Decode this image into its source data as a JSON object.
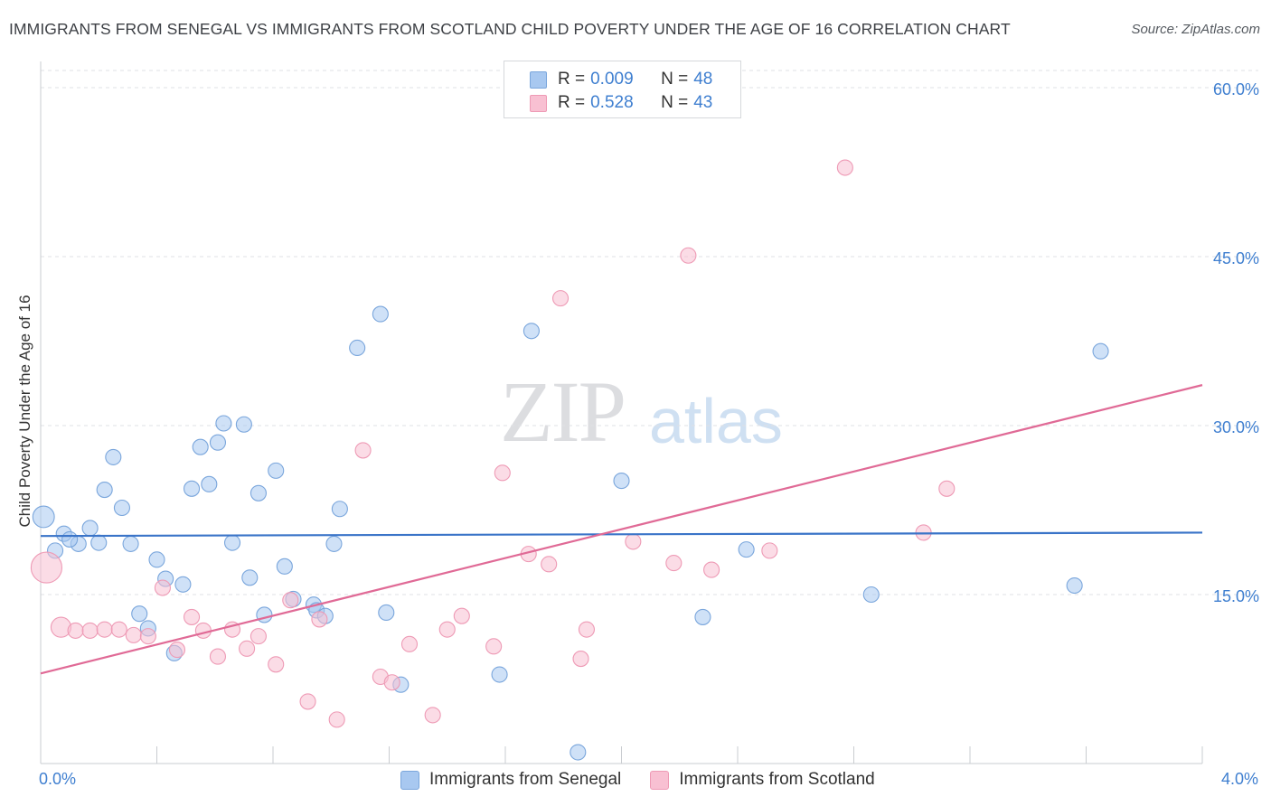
{
  "title": "IMMIGRANTS FROM SENEGAL VS IMMIGRANTS FROM SCOTLAND CHILD POVERTY UNDER THE AGE OF 16 CORRELATION CHART",
  "source": "Source: ZipAtlas.com",
  "watermark": {
    "zip": "ZIP",
    "atlas": "atlas"
  },
  "legend": {
    "rows": [
      {
        "r_label": "R =",
        "r_value": "0.009",
        "n_label": "N =",
        "n_value": "48",
        "color": "#a8c8f0",
        "border": "#7aa6dc"
      },
      {
        "r_label": "R =",
        "r_value": "0.528",
        "n_label": "N =",
        "n_value": "43",
        "color": "#f8c0d2",
        "border": "#ee9ab5"
      }
    ]
  },
  "bottom_legend": [
    {
      "label": "Immigrants from Senegal",
      "color": "#a8c8f0",
      "border": "#7aa6dc"
    },
    {
      "label": "Immigrants from Scotland",
      "color": "#f8c0d2",
      "border": "#ee9ab5"
    }
  ],
  "chart_data": {
    "type": "scatter",
    "title": "IMMIGRANTS FROM SENEGAL VS IMMIGRANTS FROM SCOTLAND CHILD POVERTY UNDER THE AGE OF 16 CORRELATION CHART",
    "xlabel": "",
    "ylabel": "Child Poverty Under the Age of 16",
    "xlim": [
      0,
      4.0
    ],
    "ylim": [
      0,
      60
    ],
    "x_tick_labels": [
      "0.0%",
      "4.0%"
    ],
    "y_ticks": [
      15,
      30,
      45,
      60
    ],
    "y_tick_labels": [
      "15.0%",
      "30.0%",
      "45.0%",
      "60.0%"
    ],
    "grid": true,
    "legend_position": "top-center",
    "series": [
      {
        "name": "Immigrants from Senegal",
        "color": "#a8c8f0",
        "stroke": "#7aa6dc",
        "trend": {
          "x": [
            0.0,
            4.0
          ],
          "y": [
            20.2,
            20.5
          ],
          "color": "#3a74c8"
        },
        "points": [
          {
            "x": 0.01,
            "y": 21.9,
            "s": 1.4
          },
          {
            "x": 0.05,
            "y": 18.9
          },
          {
            "x": 0.08,
            "y": 20.4
          },
          {
            "x": 0.13,
            "y": 19.5
          },
          {
            "x": 0.1,
            "y": 19.9
          },
          {
            "x": 0.17,
            "y": 20.9
          },
          {
            "x": 0.2,
            "y": 19.6
          },
          {
            "x": 0.22,
            "y": 24.3
          },
          {
            "x": 0.25,
            "y": 27.2
          },
          {
            "x": 0.28,
            "y": 22.7
          },
          {
            "x": 0.31,
            "y": 19.5
          },
          {
            "x": 0.34,
            "y": 13.3
          },
          {
            "x": 0.37,
            "y": 12.0
          },
          {
            "x": 0.4,
            "y": 18.1
          },
          {
            "x": 0.43,
            "y": 16.4
          },
          {
            "x": 0.46,
            "y": 9.8
          },
          {
            "x": 0.49,
            "y": 15.9
          },
          {
            "x": 0.52,
            "y": 24.4
          },
          {
            "x": 0.55,
            "y": 28.1
          },
          {
            "x": 0.58,
            "y": 24.8
          },
          {
            "x": 0.61,
            "y": 28.5
          },
          {
            "x": 0.63,
            "y": 30.2
          },
          {
            "x": 0.66,
            "y": 19.6
          },
          {
            "x": 0.7,
            "y": 30.1
          },
          {
            "x": 0.72,
            "y": 16.5
          },
          {
            "x": 0.75,
            "y": 24.0
          },
          {
            "x": 0.77,
            "y": 13.2
          },
          {
            "x": 0.81,
            "y": 26.0
          },
          {
            "x": 0.84,
            "y": 17.5
          },
          {
            "x": 0.87,
            "y": 14.6
          },
          {
            "x": 0.94,
            "y": 14.1
          },
          {
            "x": 0.95,
            "y": 13.6
          },
          {
            "x": 0.98,
            "y": 13.1
          },
          {
            "x": 1.01,
            "y": 19.5
          },
          {
            "x": 1.03,
            "y": 22.6
          },
          {
            "x": 1.09,
            "y": 36.9
          },
          {
            "x": 1.17,
            "y": 39.9
          },
          {
            "x": 1.19,
            "y": 13.4
          },
          {
            "x": 1.24,
            "y": 7.0
          },
          {
            "x": 1.58,
            "y": 7.9
          },
          {
            "x": 1.69,
            "y": 38.4
          },
          {
            "x": 1.85,
            "y": 1.0
          },
          {
            "x": 2.0,
            "y": 25.1
          },
          {
            "x": 2.28,
            "y": 13.0
          },
          {
            "x": 2.43,
            "y": 19.0
          },
          {
            "x": 2.86,
            "y": 15.0
          },
          {
            "x": 3.56,
            "y": 15.8
          },
          {
            "x": 3.65,
            "y": 36.6
          }
        ]
      },
      {
        "name": "Immigrants from Scotland",
        "color": "#f8c0d2",
        "stroke": "#ee9ab5",
        "trend": {
          "x": [
            0.0,
            4.0
          ],
          "y": [
            8.0,
            33.6
          ],
          "color": "#e06a96"
        },
        "points": [
          {
            "x": 0.02,
            "y": 17.4,
            "s": 2.0
          },
          {
            "x": 0.07,
            "y": 12.1,
            "s": 1.3
          },
          {
            "x": 0.12,
            "y": 11.8
          },
          {
            "x": 0.17,
            "y": 11.8
          },
          {
            "x": 0.22,
            "y": 11.9
          },
          {
            "x": 0.27,
            "y": 11.9
          },
          {
            "x": 0.32,
            "y": 11.4
          },
          {
            "x": 0.37,
            "y": 11.3
          },
          {
            "x": 0.42,
            "y": 15.6
          },
          {
            "x": 0.47,
            "y": 10.1
          },
          {
            "x": 0.52,
            "y": 13.0
          },
          {
            "x": 0.56,
            "y": 11.8
          },
          {
            "x": 0.61,
            "y": 9.5
          },
          {
            "x": 0.66,
            "y": 11.9
          },
          {
            "x": 0.71,
            "y": 10.2
          },
          {
            "x": 0.75,
            "y": 11.3
          },
          {
            "x": 0.81,
            "y": 8.8
          },
          {
            "x": 0.86,
            "y": 14.5
          },
          {
            "x": 0.92,
            "y": 5.5
          },
          {
            "x": 0.96,
            "y": 12.8
          },
          {
            "x": 1.02,
            "y": 3.9
          },
          {
            "x": 1.11,
            "y": 27.8
          },
          {
            "x": 1.17,
            "y": 7.7
          },
          {
            "x": 1.21,
            "y": 7.2
          },
          {
            "x": 1.27,
            "y": 10.6
          },
          {
            "x": 1.35,
            "y": 4.3
          },
          {
            "x": 1.4,
            "y": 11.9
          },
          {
            "x": 1.45,
            "y": 13.1
          },
          {
            "x": 1.56,
            "y": 10.4
          },
          {
            "x": 1.59,
            "y": 25.8
          },
          {
            "x": 1.68,
            "y": 18.6
          },
          {
            "x": 1.75,
            "y": 17.7
          },
          {
            "x": 1.79,
            "y": 41.3
          },
          {
            "x": 1.86,
            "y": 9.3
          },
          {
            "x": 1.88,
            "y": 11.9
          },
          {
            "x": 2.04,
            "y": 19.7
          },
          {
            "x": 2.18,
            "y": 17.8
          },
          {
            "x": 2.23,
            "y": 45.1
          },
          {
            "x": 2.31,
            "y": 17.2
          },
          {
            "x": 2.51,
            "y": 18.9
          },
          {
            "x": 2.77,
            "y": 52.9
          },
          {
            "x": 3.04,
            "y": 20.5
          },
          {
            "x": 3.12,
            "y": 24.4
          }
        ]
      }
    ]
  }
}
